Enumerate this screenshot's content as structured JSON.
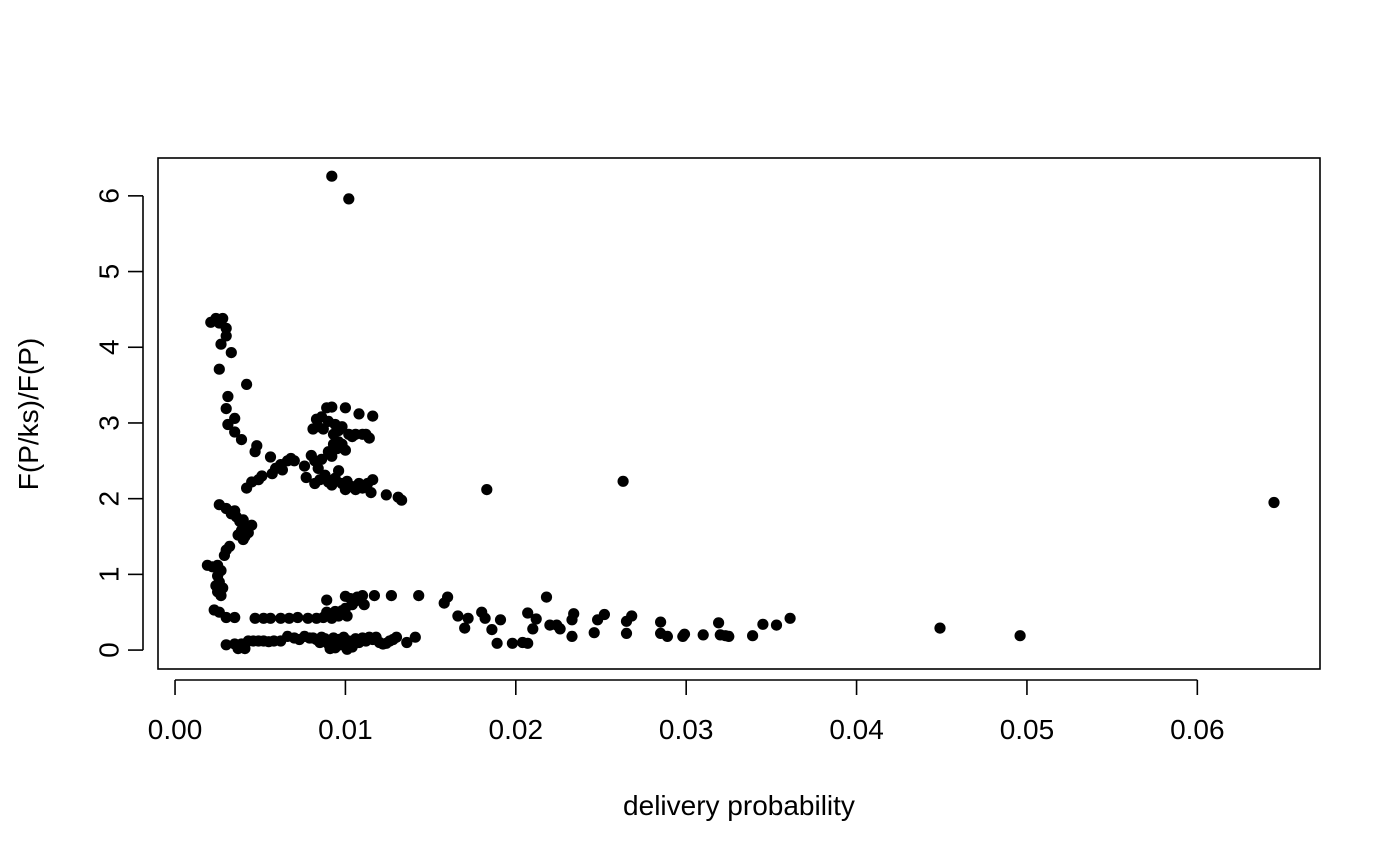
{
  "chart_data": {
    "type": "scatter",
    "title": "",
    "xlabel": "delivery probability",
    "ylabel": "F(P/ks)/F(P)",
    "xlim": [
      -0.001,
      0.0672
    ],
    "ylim": [
      -0.25,
      6.5
    ],
    "x_ticks": [
      0.0,
      0.01,
      0.02,
      0.03,
      0.04,
      0.05,
      0.06
    ],
    "x_tick_labels": [
      "0.00",
      "0.01",
      "0.02",
      "0.03",
      "0.04",
      "0.05",
      "0.06"
    ],
    "y_ticks": [
      0,
      1,
      2,
      3,
      4,
      5,
      6
    ],
    "y_tick_labels": [
      "0",
      "1",
      "2",
      "3",
      "4",
      "5",
      "6"
    ],
    "grid": false,
    "point_color": "#000000",
    "points": [
      [
        0.0092,
        6.26
      ],
      [
        0.0102,
        5.96
      ],
      [
        0.0021,
        4.33
      ],
      [
        0.0024,
        4.38
      ],
      [
        0.0026,
        4.32
      ],
      [
        0.0028,
        4.38
      ],
      [
        0.003,
        4.25
      ],
      [
        0.003,
        4.15
      ],
      [
        0.0027,
        4.04
      ],
      [
        0.0033,
        3.93
      ],
      [
        0.0026,
        3.71
      ],
      [
        0.0042,
        3.51
      ],
      [
        0.0031,
        3.35
      ],
      [
        0.003,
        3.19
      ],
      [
        0.0035,
        3.06
      ],
      [
        0.0031,
        2.98
      ],
      [
        0.0035,
        2.88
      ],
      [
        0.0039,
        2.78
      ],
      [
        0.0048,
        2.7
      ],
      [
        0.0047,
        2.62
      ],
      [
        0.0056,
        2.55
      ],
      [
        0.0062,
        2.45
      ],
      [
        0.0066,
        2.5
      ],
      [
        0.0068,
        2.53
      ],
      [
        0.007,
        2.5
      ],
      [
        0.0059,
        2.4
      ],
      [
        0.0057,
        2.33
      ],
      [
        0.0063,
        2.38
      ],
      [
        0.0051,
        2.3
      ],
      [
        0.0049,
        2.25
      ],
      [
        0.0045,
        2.22
      ],
      [
        0.0042,
        2.14
      ],
      [
        0.0076,
        2.43
      ],
      [
        0.0077,
        2.28
      ],
      [
        0.008,
        2.57
      ],
      [
        0.0082,
        2.5
      ],
      [
        0.0084,
        2.4
      ],
      [
        0.0086,
        2.52
      ],
      [
        0.0088,
        2.31
      ],
      [
        0.0082,
        2.2
      ],
      [
        0.0085,
        2.25
      ],
      [
        0.009,
        2.22
      ],
      [
        0.0092,
        2.18
      ],
      [
        0.0094,
        2.27
      ],
      [
        0.0096,
        2.37
      ],
      [
        0.0098,
        2.2
      ],
      [
        0.01,
        2.12
      ],
      [
        0.0101,
        2.23
      ],
      [
        0.0104,
        2.16
      ],
      [
        0.0106,
        2.12
      ],
      [
        0.0108,
        2.2
      ],
      [
        0.011,
        2.14
      ],
      [
        0.0113,
        2.2
      ],
      [
        0.0115,
        2.08
      ],
      [
        0.0116,
        2.25
      ],
      [
        0.0124,
        2.05
      ],
      [
        0.0131,
        2.02
      ],
      [
        0.0133,
        1.98
      ],
      [
        0.0081,
        2.92
      ],
      [
        0.0083,
        3.05
      ],
      [
        0.0084,
        2.95
      ],
      [
        0.0086,
        3.08
      ],
      [
        0.0087,
        2.92
      ],
      [
        0.0089,
        3.2
      ],
      [
        0.009,
        3.02
      ],
      [
        0.0092,
        3.21
      ],
      [
        0.0094,
        2.98
      ],
      [
        0.0093,
        2.85
      ],
      [
        0.0096,
        2.9
      ],
      [
        0.0098,
        2.95
      ],
      [
        0.01,
        3.2
      ],
      [
        0.0102,
        2.85
      ],
      [
        0.0104,
        2.82
      ],
      [
        0.0106,
        2.85
      ],
      [
        0.0108,
        3.12
      ],
      [
        0.011,
        2.85
      ],
      [
        0.0112,
        2.85
      ],
      [
        0.0114,
        2.8
      ],
      [
        0.0116,
        3.09
      ],
      [
        0.009,
        2.62
      ],
      [
        0.0092,
        2.56
      ],
      [
        0.0093,
        2.72
      ],
      [
        0.0095,
        2.66
      ],
      [
        0.0096,
        2.75
      ],
      [
        0.0098,
        2.72
      ],
      [
        0.01,
        2.64
      ],
      [
        0.0183,
        2.12
      ],
      [
        0.0263,
        2.23
      ],
      [
        0.0645,
        1.95
      ],
      [
        0.0026,
        1.92
      ],
      [
        0.003,
        1.87
      ],
      [
        0.0033,
        1.8
      ],
      [
        0.0035,
        1.84
      ],
      [
        0.0036,
        1.76
      ],
      [
        0.0038,
        1.7
      ],
      [
        0.004,
        1.72
      ],
      [
        0.0042,
        1.64
      ],
      [
        0.0039,
        1.58
      ],
      [
        0.0041,
        1.5
      ],
      [
        0.0043,
        1.55
      ],
      [
        0.0045,
        1.65
      ],
      [
        0.0037,
        1.52
      ],
      [
        0.004,
        1.46
      ],
      [
        0.0032,
        1.37
      ],
      [
        0.003,
        1.32
      ],
      [
        0.0029,
        1.25
      ],
      [
        0.0019,
        1.12
      ],
      [
        0.0022,
        1.1
      ],
      [
        0.0025,
        1.12
      ],
      [
        0.0027,
        1.05
      ],
      [
        0.0025,
        0.98
      ],
      [
        0.0026,
        0.9
      ],
      [
        0.0024,
        0.85
      ],
      [
        0.0028,
        0.82
      ],
      [
        0.0025,
        0.77
      ],
      [
        0.0027,
        0.72
      ],
      [
        0.0023,
        0.53
      ],
      [
        0.0026,
        0.5
      ],
      [
        0.003,
        0.43
      ],
      [
        0.0035,
        0.43
      ],
      [
        0.0047,
        0.42
      ],
      [
        0.0052,
        0.42
      ],
      [
        0.0056,
        0.42
      ],
      [
        0.0062,
        0.42
      ],
      [
        0.0067,
        0.42
      ],
      [
        0.0072,
        0.43
      ],
      [
        0.0078,
        0.42
      ],
      [
        0.0083,
        0.42
      ],
      [
        0.0087,
        0.43
      ],
      [
        0.0089,
        0.5
      ],
      [
        0.0092,
        0.42
      ],
      [
        0.0094,
        0.51
      ],
      [
        0.0096,
        0.45
      ],
      [
        0.0098,
        0.52
      ],
      [
        0.01,
        0.55
      ],
      [
        0.0101,
        0.45
      ],
      [
        0.0104,
        0.6
      ],
      [
        0.0106,
        0.65
      ],
      [
        0.0107,
        0.7
      ],
      [
        0.0089,
        0.66
      ],
      [
        0.01,
        0.71
      ],
      [
        0.0103,
        0.68
      ],
      [
        0.011,
        0.72
      ],
      [
        0.0111,
        0.6
      ],
      [
        0.0117,
        0.72
      ],
      [
        0.0127,
        0.72
      ],
      [
        0.0143,
        0.72
      ],
      [
        0.0158,
        0.62
      ],
      [
        0.016,
        0.7
      ],
      [
        0.0166,
        0.45
      ],
      [
        0.0172,
        0.42
      ],
      [
        0.017,
        0.29
      ],
      [
        0.018,
        0.5
      ],
      [
        0.0182,
        0.42
      ],
      [
        0.0186,
        0.27
      ],
      [
        0.0191,
        0.4
      ],
      [
        0.0207,
        0.49
      ],
      [
        0.0212,
        0.41
      ],
      [
        0.021,
        0.28
      ],
      [
        0.0218,
        0.7
      ],
      [
        0.022,
        0.33
      ],
      [
        0.0224,
        0.33
      ],
      [
        0.0226,
        0.28
      ],
      [
        0.0233,
        0.4
      ],
      [
        0.0234,
        0.48
      ],
      [
        0.0233,
        0.18
      ],
      [
        0.0246,
        0.23
      ],
      [
        0.0248,
        0.4
      ],
      [
        0.0252,
        0.47
      ],
      [
        0.0265,
        0.38
      ],
      [
        0.0265,
        0.22
      ],
      [
        0.0268,
        0.45
      ],
      [
        0.0285,
        0.37
      ],
      [
        0.0285,
        0.22
      ],
      [
        0.0289,
        0.18
      ],
      [
        0.0298,
        0.18
      ],
      [
        0.0299,
        0.21
      ],
      [
        0.031,
        0.2
      ],
      [
        0.0319,
        0.36
      ],
      [
        0.032,
        0.2
      ],
      [
        0.0323,
        0.19
      ],
      [
        0.0325,
        0.18
      ],
      [
        0.0339,
        0.19
      ],
      [
        0.0345,
        0.34
      ],
      [
        0.0353,
        0.33
      ],
      [
        0.0361,
        0.42
      ],
      [
        0.0449,
        0.29
      ],
      [
        0.0496,
        0.19
      ],
      [
        0.003,
        0.07
      ],
      [
        0.0035,
        0.08
      ],
      [
        0.0037,
        0.02
      ],
      [
        0.0039,
        0.08
      ],
      [
        0.0041,
        0.02
      ],
      [
        0.0043,
        0.12
      ],
      [
        0.0046,
        0.12
      ],
      [
        0.0049,
        0.12
      ],
      [
        0.0052,
        0.12
      ],
      [
        0.0055,
        0.11
      ],
      [
        0.0058,
        0.12
      ],
      [
        0.0062,
        0.12
      ],
      [
        0.0066,
        0.18
      ],
      [
        0.007,
        0.16
      ],
      [
        0.0073,
        0.14
      ],
      [
        0.0076,
        0.18
      ],
      [
        0.0079,
        0.16
      ],
      [
        0.0081,
        0.16
      ],
      [
        0.0083,
        0.14
      ],
      [
        0.0085,
        0.1
      ],
      [
        0.0086,
        0.17
      ],
      [
        0.0088,
        0.15
      ],
      [
        0.009,
        0.08
      ],
      [
        0.0091,
        0.02
      ],
      [
        0.0093,
        0.16
      ],
      [
        0.0094,
        0.03
      ],
      [
        0.0096,
        0.14
      ],
      [
        0.0097,
        0.07
      ],
      [
        0.0099,
        0.17
      ],
      [
        0.01,
        0.08
      ],
      [
        0.0101,
        0.01
      ],
      [
        0.0102,
        0.12
      ],
      [
        0.0104,
        0.04
      ],
      [
        0.0106,
        0.15
      ],
      [
        0.0108,
        0.1
      ],
      [
        0.011,
        0.16
      ],
      [
        0.0112,
        0.12
      ],
      [
        0.0114,
        0.17
      ],
      [
        0.0116,
        0.14
      ],
      [
        0.0118,
        0.17
      ],
      [
        0.012,
        0.1
      ],
      [
        0.0122,
        0.08
      ],
      [
        0.0124,
        0.09
      ],
      [
        0.0126,
        0.12
      ],
      [
        0.0128,
        0.14
      ],
      [
        0.013,
        0.17
      ],
      [
        0.0136,
        0.1
      ],
      [
        0.0141,
        0.17
      ],
      [
        0.0189,
        0.09
      ],
      [
        0.0198,
        0.09
      ],
      [
        0.0204,
        0.1
      ],
      [
        0.0207,
        0.09
      ]
    ]
  }
}
